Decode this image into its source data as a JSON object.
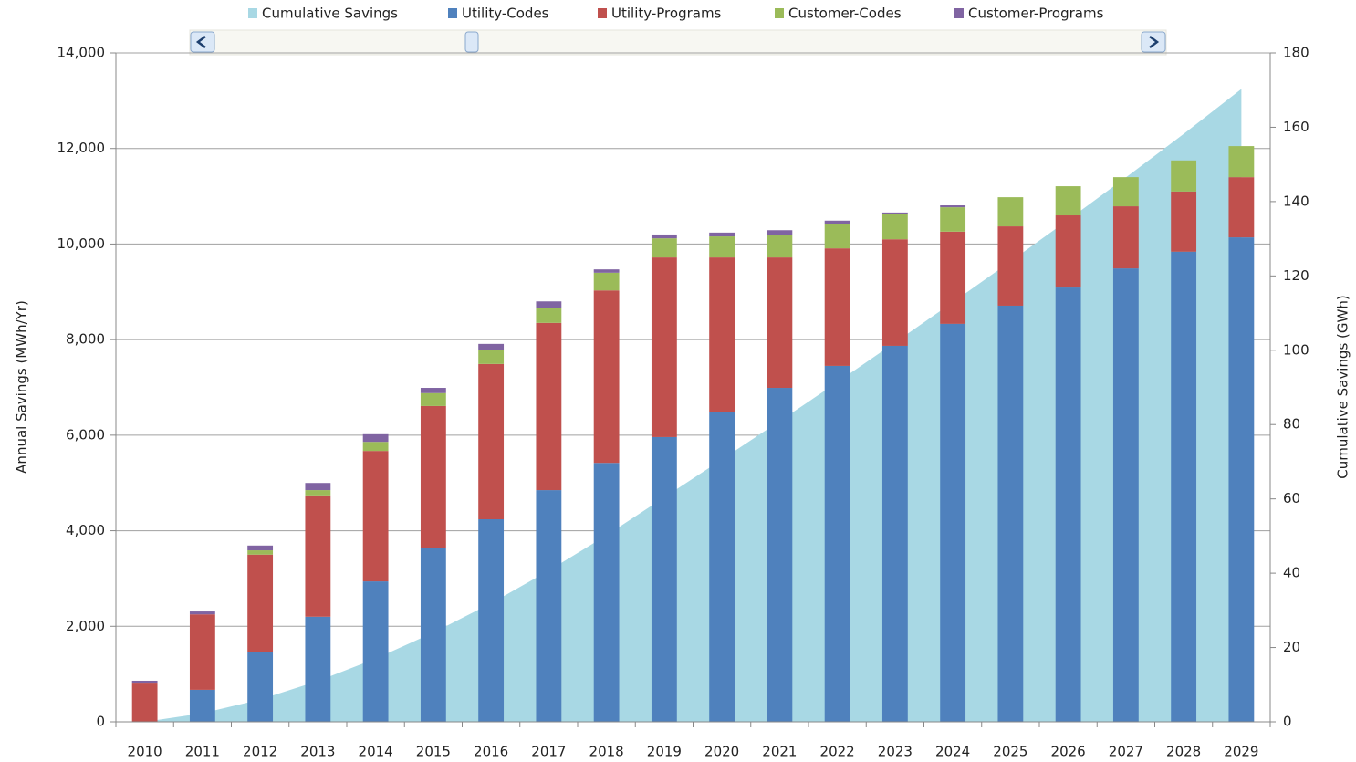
{
  "chart_data": {
    "type": "stacked-bar-area",
    "y_label": "Annual Savings (MWh/Yr)",
    "y2_label": "Cumulative Savings (GWh)",
    "categories": [
      "2010",
      "2011",
      "2012",
      "2013",
      "2014",
      "2015",
      "2016",
      "2017",
      "2018",
      "2019",
      "2020",
      "2021",
      "2022",
      "2023",
      "2024",
      "2025",
      "2026",
      "2027",
      "2028",
      "2029"
    ],
    "series": [
      {
        "name": "Cumulative Savings",
        "color": "#a8d8e4",
        "axis": "y2",
        "kind": "area",
        "values": [
          0,
          2.3,
          6.0,
          11.0,
          17.0,
          24.0,
          31.9,
          40.7,
          50.2,
          60.4,
          70.6,
          80.9,
          91.4,
          102.1,
          112.9,
          123.9,
          135.1,
          146.5,
          158.2,
          170.3
        ]
      },
      {
        "name": "Utility-Codes",
        "color": "#4f81bd",
        "kind": "bar",
        "values": [
          0,
          670,
          1470,
          2200,
          2940,
          3630,
          4240,
          4850,
          5420,
          5960,
          6490,
          6990,
          7450,
          7870,
          8330,
          8710,
          9090,
          9490,
          9840,
          10140
        ]
      },
      {
        "name": "Utility-Programs",
        "color": "#c0504d",
        "kind": "bar",
        "values": [
          820,
          1580,
          2030,
          2540,
          2730,
          2980,
          3250,
          3500,
          3610,
          3760,
          3230,
          2730,
          2460,
          2230,
          1930,
          1660,
          1510,
          1300,
          1260,
          1260
        ]
      },
      {
        "name": "Customer-Codes",
        "color": "#9bbb59",
        "kind": "bar",
        "values": [
          0,
          0,
          90,
          110,
          190,
          270,
          300,
          320,
          370,
          400,
          440,
          460,
          500,
          520,
          510,
          610,
          610,
          610,
          650,
          650
        ]
      },
      {
        "name": "Customer-Programs",
        "color": "#8064a2",
        "kind": "bar",
        "values": [
          40,
          60,
          100,
          150,
          160,
          110,
          120,
          130,
          70,
          80,
          80,
          110,
          80,
          40,
          40,
          0,
          0,
          0,
          0,
          0
        ]
      }
    ],
    "ylim": [
      0,
      14000
    ],
    "yticks": [
      0,
      {
        "value": 2000,
        "label": "2,000"
      },
      {
        "value": 4000,
        "label": "4,000"
      },
      {
        "value": 6000,
        "label": "6,000"
      },
      {
        "value": 8000,
        "label": "8,000"
      },
      {
        "value": 10000,
        "label": "10,000"
      },
      {
        "value": 12000,
        "label": "12,000"
      },
      {
        "value": 14000,
        "label": "14,000"
      }
    ],
    "y2lim": [
      0,
      180
    ],
    "y2ticks": [
      0,
      20,
      40,
      60,
      80,
      100,
      120,
      140,
      160,
      180
    ],
    "grid": true,
    "legend": "top"
  }
}
